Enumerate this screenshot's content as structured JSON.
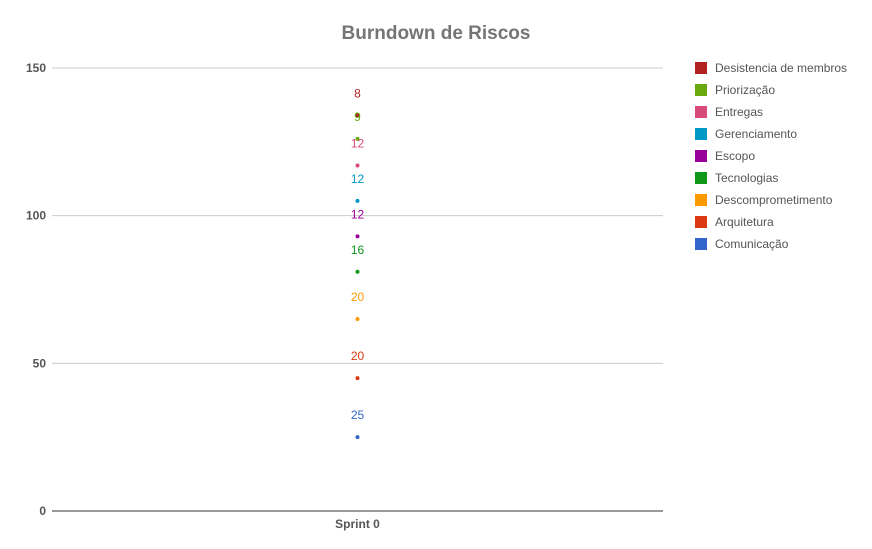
{
  "chart_data": {
    "type": "area",
    "stacked": true,
    "title": "Burndown de Riscos",
    "categories": [
      "Sprint 0"
    ],
    "ylim": [
      0,
      150
    ],
    "yticks": [
      0,
      50,
      100,
      150
    ],
    "grid": true,
    "legend_position": "right",
    "series": [
      {
        "name": "Desistencia de membros",
        "values": [
          8
        ],
        "color": "#b22222"
      },
      {
        "name": "Priorização",
        "values": [
          9
        ],
        "color": "#6aa80f"
      },
      {
        "name": "Entregas",
        "values": [
          12
        ],
        "color": "#d84a7a"
      },
      {
        "name": "Gerenciamento",
        "values": [
          12
        ],
        "color": "#0099c6"
      },
      {
        "name": "Escopo",
        "values": [
          12
        ],
        "color": "#990099"
      },
      {
        "name": "Tecnologias",
        "values": [
          16
        ],
        "color": "#109618"
      },
      {
        "name": "Descomprometimento",
        "values": [
          20
        ],
        "color": "#ff9900"
      },
      {
        "name": "Arquitetura",
        "values": [
          20
        ],
        "color": "#dc3912"
      },
      {
        "name": "Comunicação",
        "values": [
          25
        ],
        "color": "#3366cc"
      }
    ]
  }
}
